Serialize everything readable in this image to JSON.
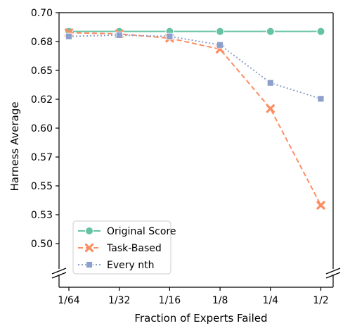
{
  "chart_data": {
    "type": "line",
    "xlabel": "Fraction of Experts Failed",
    "ylabel": "Harness Average",
    "categories": [
      "1/64",
      "1/32",
      "1/16",
      "1/8",
      "1/4",
      "1/2"
    ],
    "yticks": [
      "0.50",
      "0.53",
      "0.55",
      "0.57",
      "0.60",
      "0.62",
      "0.65",
      "0.68",
      "0.70"
    ],
    "ylim": [
      0.482,
      0.7
    ],
    "axis_break": true,
    "grid": false,
    "legend_position": "lower-left",
    "series": [
      {
        "name": "Original Score",
        "values": [
          0.6835,
          0.6835,
          0.6835,
          0.6835,
          0.6835,
          0.6835
        ],
        "color": "#66c2a5",
        "marker": "circle",
        "dash": "solid"
      },
      {
        "name": "Task-Based",
        "values": [
          0.6825,
          0.6815,
          0.678,
          0.669,
          0.6205,
          0.5415
        ],
        "color": "#fc8d62",
        "marker": "x",
        "dash": "dashed"
      },
      {
        "name": "Every nth",
        "values": [
          0.6795,
          0.6805,
          0.6795,
          0.6725,
          0.6415,
          0.6285
        ],
        "color": "#8da0cb",
        "marker": "square",
        "dash": "dotted"
      }
    ]
  }
}
